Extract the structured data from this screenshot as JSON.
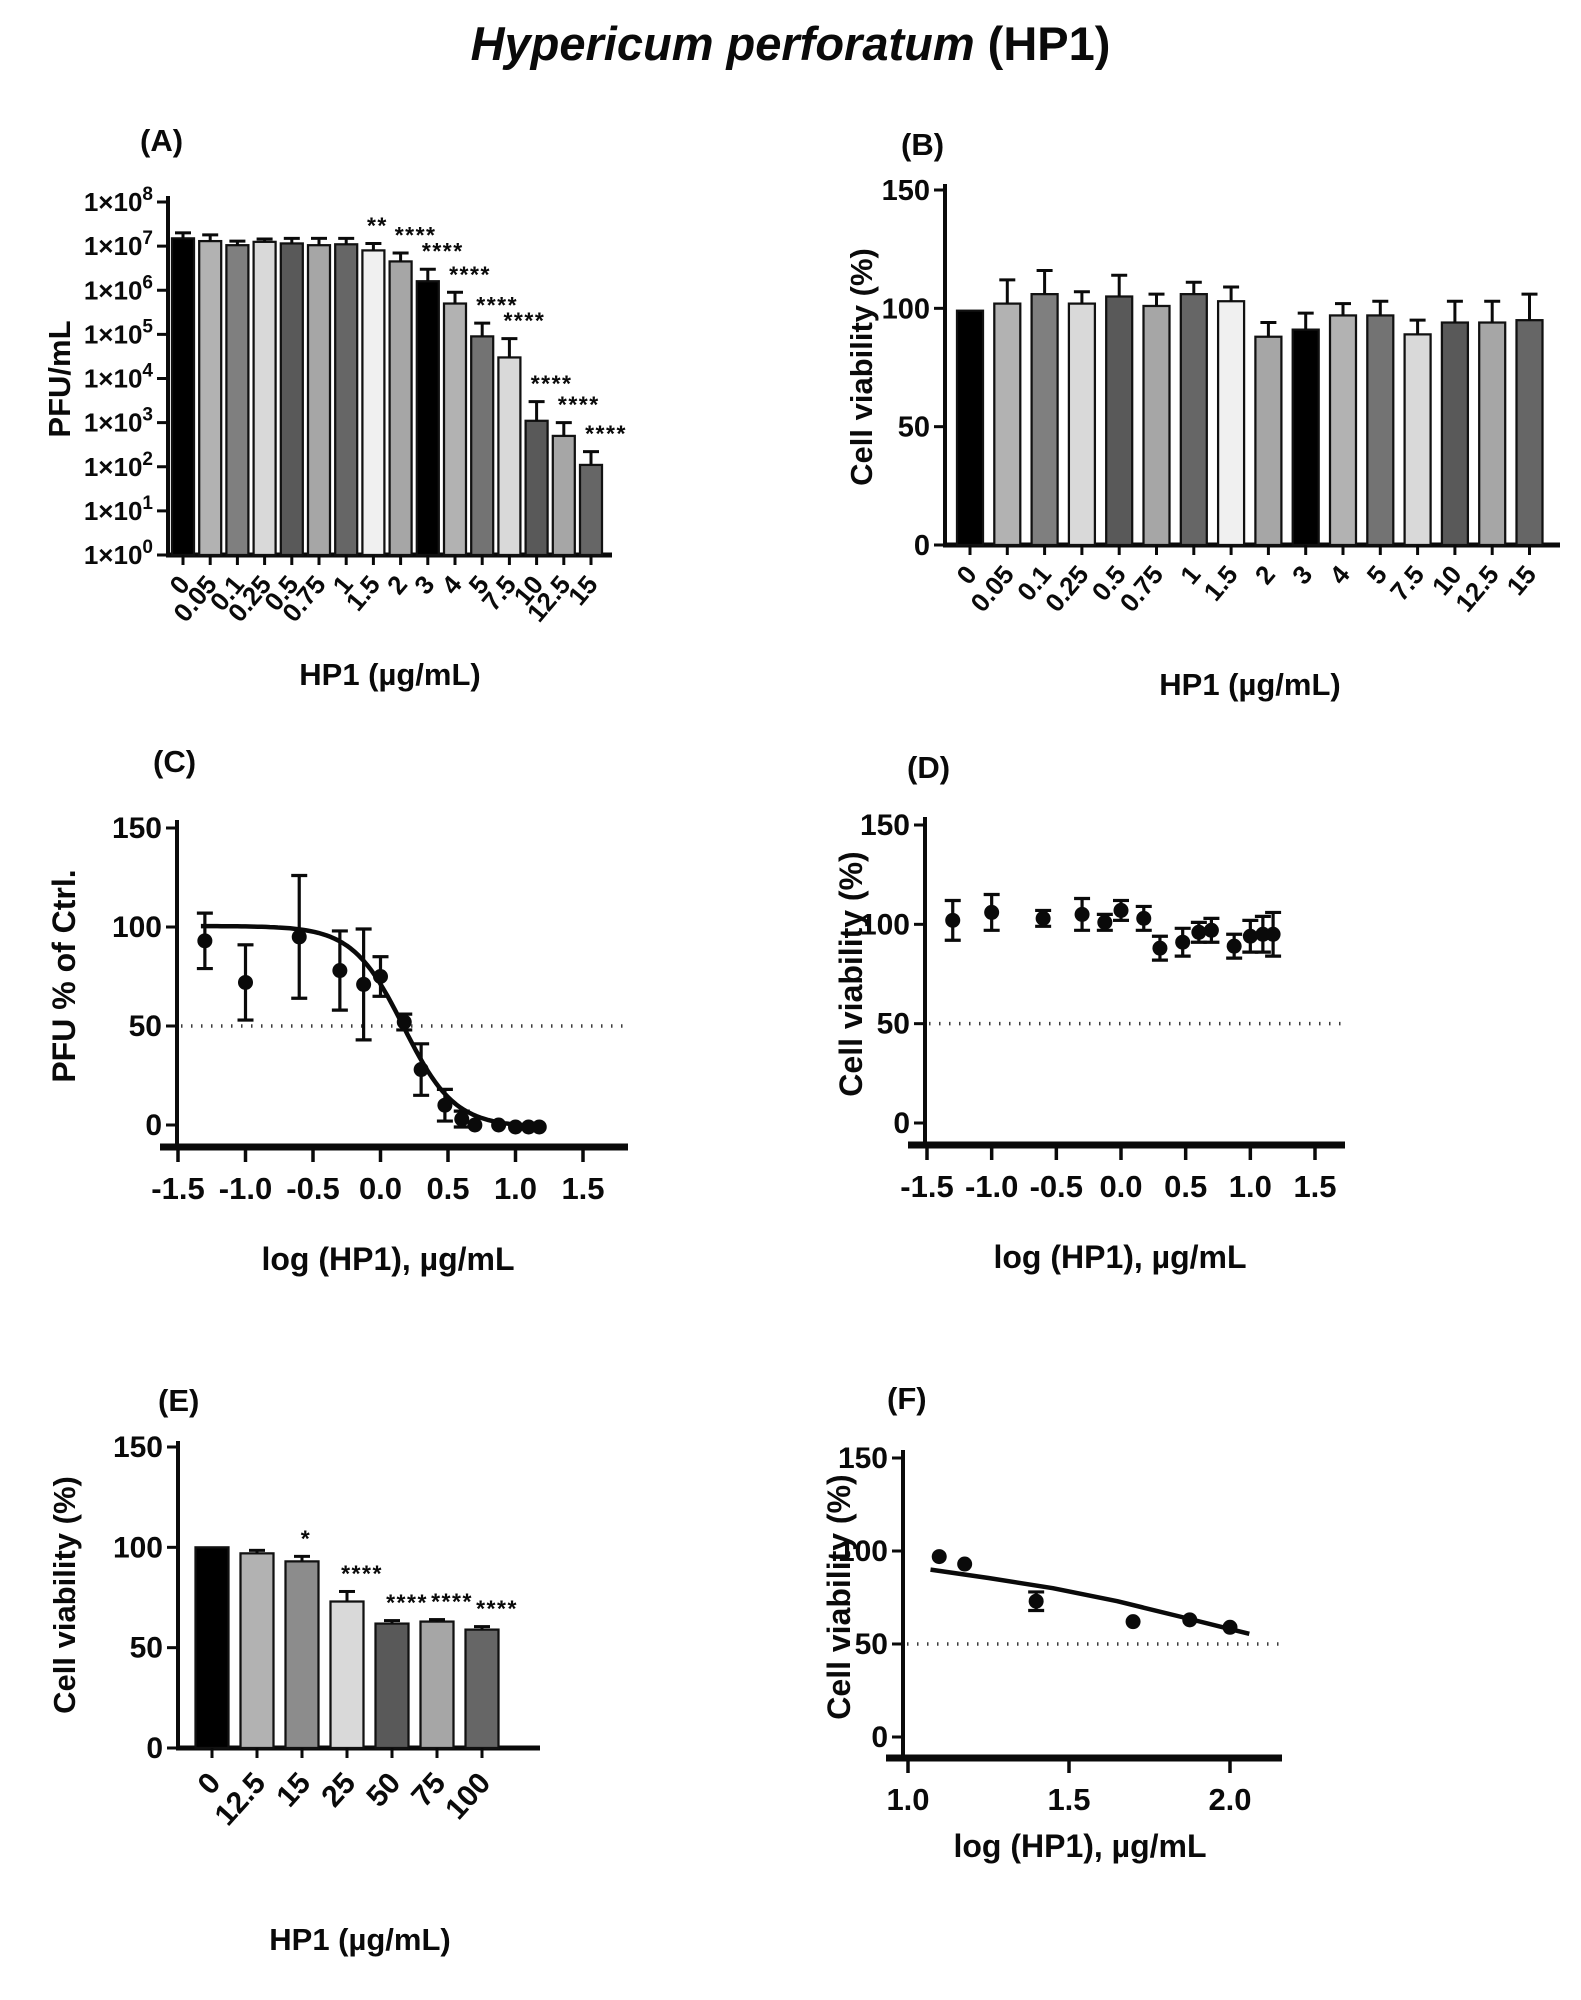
{
  "page_title": {
    "species": "Hypericum perforatum",
    "suffix": " (HP1)"
  },
  "accent_color": "#0a0a0a",
  "chart_data": [
    {
      "label": "(A)",
      "type": "bar",
      "y_scale": "log",
      "y_label": "PFU/mL",
      "x_label": "HP1 (µg/mL)",
      "y_ticks": [
        {
          "base": "1×10",
          "exp": "8"
        },
        {
          "base": "1×10",
          "exp": "7"
        },
        {
          "base": "1×10",
          "exp": "6"
        },
        {
          "base": "1×10",
          "exp": "5"
        },
        {
          "base": "1×10",
          "exp": "4"
        },
        {
          "base": "1×10",
          "exp": "3"
        },
        {
          "base": "1×10",
          "exp": "2"
        },
        {
          "base": "1×10",
          "exp": "1"
        },
        {
          "base": "1×10",
          "exp": "0"
        }
      ],
      "categories": [
        "0",
        "0.05",
        "0.1",
        "0.25",
        "0.5",
        "0.75",
        "1",
        "1.5",
        "2",
        "3",
        "4",
        "5",
        "7.5",
        "10",
        "12.5",
        "15"
      ],
      "values": [
        15000000.0,
        13000000.0,
        10500000.0,
        12500000.0,
        11500000.0,
        10500000.0,
        11000000.0,
        8000000.0,
        4500000.0,
        1600000.0,
        500000.0,
        90000.0,
        30000.0,
        1100.0,
        500.0,
        110.0
      ],
      "error_top": [
        20000000.0,
        18000000.0,
        13000000.0,
        14500000.0,
        15000000.0,
        15000000.0,
        15000000.0,
        11500000.0,
        7000000.0,
        3000000.0,
        900000.0,
        180000.0,
        80000.0,
        3000.0,
        1000.0,
        220.0
      ],
      "significance": [
        "",
        "",
        "",
        "",
        "",
        "",
        "",
        "**",
        "****",
        "****",
        "****",
        "****",
        "****",
        "****",
        "****",
        "****"
      ],
      "bar_colors": [
        "#000000",
        "#b2b2b2",
        "#7f7f7f",
        "#d9d9d9",
        "#595959",
        "#a6a6a6",
        "#666666",
        "#f0f0f0",
        "#a6a6a6",
        "#000000",
        "#b2b2b2",
        "#737373",
        "#d9d9d9",
        "#595959",
        "#a6a6a6",
        "#666666"
      ]
    },
    {
      "label": "(B)",
      "type": "bar",
      "y_scale": "linear",
      "y_label": "Cell viability (%)",
      "x_label": "HP1 (µg/mL)",
      "y_ticks": [
        0,
        50,
        100,
        150
      ],
      "categories": [
        "0",
        "0.05",
        "0.1",
        "0.25",
        "0.5",
        "0.75",
        "1",
        "1.5",
        "2",
        "3",
        "4",
        "5",
        "7.5",
        "10",
        "12.5",
        "15"
      ],
      "values": [
        99,
        102,
        106,
        102,
        105,
        101,
        106,
        103,
        88,
        91,
        97,
        97,
        89,
        94,
        94,
        95
      ],
      "error": [
        0,
        10,
        10,
        5,
        9,
        5,
        5,
        6,
        6,
        7,
        5,
        6,
        6,
        9,
        9,
        11
      ],
      "significance": [
        "",
        "",
        "",
        "",
        "",
        "",
        "",
        "",
        "",
        "",
        "",
        "",
        "",
        "",
        "",
        ""
      ],
      "bar_colors": [
        "#000000",
        "#b2b2b2",
        "#7f7f7f",
        "#d9d9d9",
        "#595959",
        "#a6a6a6",
        "#666666",
        "#f0f0f0",
        "#a6a6a6",
        "#000000",
        "#b2b2b2",
        "#737373",
        "#d9d9d9",
        "#595959",
        "#a6a6a6",
        "#666666"
      ]
    },
    {
      "label": "(C)",
      "type": "scatter",
      "y_label": "PFU % of Ctrl.",
      "x_label": "log (HP1), µg/mL",
      "y_ticks": [
        0,
        50,
        100,
        150
      ],
      "x_ticks": [
        "-1.5",
        "-1.0",
        "-0.5",
        "0.0",
        "0.5",
        "1.0",
        "1.5"
      ],
      "x_tick_values": [
        -1.5,
        -1.0,
        -0.5,
        0.0,
        0.5,
        1.0,
        1.5
      ],
      "dashed_y": 50,
      "points": {
        "x": [
          -1.301,
          -1.0,
          -0.602,
          -0.301,
          -0.125,
          0.0,
          0.176,
          0.301,
          0.477,
          0.602,
          0.699,
          0.875,
          1.0,
          1.097,
          1.176
        ],
        "y": [
          93,
          72,
          95,
          78,
          71,
          75,
          52,
          28,
          10,
          3,
          0,
          0,
          -1,
          -1,
          -1
        ],
        "err": [
          14,
          19,
          31,
          20,
          28,
          10,
          4,
          13,
          8,
          4,
          2,
          2,
          2,
          2,
          2
        ]
      },
      "curve": {
        "kind": "sigmoid",
        "top": 100.5,
        "bottom": -1,
        "log_ic50": 0.17,
        "hill": 2.3,
        "x_start": -1.33,
        "x_end": 1.21
      }
    },
    {
      "label": "(D)",
      "type": "scatter",
      "y_label": "Cell viability (%)",
      "x_label": "log (HP1), µg/mL",
      "y_ticks": [
        0,
        50,
        100,
        150
      ],
      "x_ticks": [
        "-1.5",
        "-1.0",
        "-0.5",
        "0.0",
        "0.5",
        "1.0",
        "1.5"
      ],
      "x_tick_values": [
        -1.5,
        -1.0,
        -0.5,
        0.0,
        0.5,
        1.0,
        1.5
      ],
      "dashed_y": 50,
      "points": {
        "x": [
          -1.301,
          -1.0,
          -0.602,
          -0.301,
          -0.125,
          0.0,
          0.176,
          0.301,
          0.477,
          0.602,
          0.699,
          0.875,
          1.0,
          1.097,
          1.176
        ],
        "y": [
          102,
          106,
          103,
          105,
          101,
          107,
          103,
          88,
          91,
          96,
          97,
          89,
          94,
          95,
          95
        ],
        "err": [
          10,
          9,
          4,
          8,
          4,
          5,
          6,
          6,
          7,
          5,
          6,
          6,
          8,
          9,
          11
        ]
      },
      "curve": null
    },
    {
      "label": "(E)",
      "type": "bar",
      "y_scale": "linear",
      "y_label": "Cell viability (%)",
      "x_label": "HP1 (µg/mL)",
      "y_ticks": [
        0,
        50,
        100,
        150
      ],
      "categories": [
        "0",
        "12.5",
        "15",
        "25",
        "50",
        "75",
        "100"
      ],
      "values": [
        100,
        97,
        93,
        73,
        62,
        63,
        59
      ],
      "error": [
        0,
        1.5,
        2.5,
        5,
        1.5,
        1,
        1.5
      ],
      "significance": [
        "",
        "",
        "*",
        "****",
        "****",
        "****",
        "****"
      ],
      "bar_colors": [
        "#000000",
        "#b2b2b2",
        "#8c8c8c",
        "#d9d9d9",
        "#595959",
        "#a6a6a6",
        "#666666"
      ]
    },
    {
      "label": "(F)",
      "type": "scatter",
      "y_label": "Cell viability (%)",
      "x_label": "log (HP1), µg/mL",
      "y_ticks": [
        0,
        50,
        100,
        150
      ],
      "x_ticks": [
        "1.0",
        "1.5",
        "2.0"
      ],
      "x_tick_values": [
        1.0,
        1.5,
        2.0
      ],
      "dashed_y": 50,
      "points": {
        "x": [
          1.097,
          1.176,
          1.398,
          1.699,
          1.875,
          2.0
        ],
        "y": [
          97,
          93,
          73,
          62,
          63,
          59
        ],
        "err": [
          2,
          2,
          5,
          2,
          2,
          2
        ]
      },
      "curve": {
        "kind": "points",
        "pts": [
          [
            1.07,
            90
          ],
          [
            1.25,
            85.5
          ],
          [
            1.45,
            80
          ],
          [
            1.65,
            73
          ],
          [
            1.85,
            64.5
          ],
          [
            2.0,
            58
          ],
          [
            2.06,
            55.5
          ]
        ]
      }
    }
  ]
}
